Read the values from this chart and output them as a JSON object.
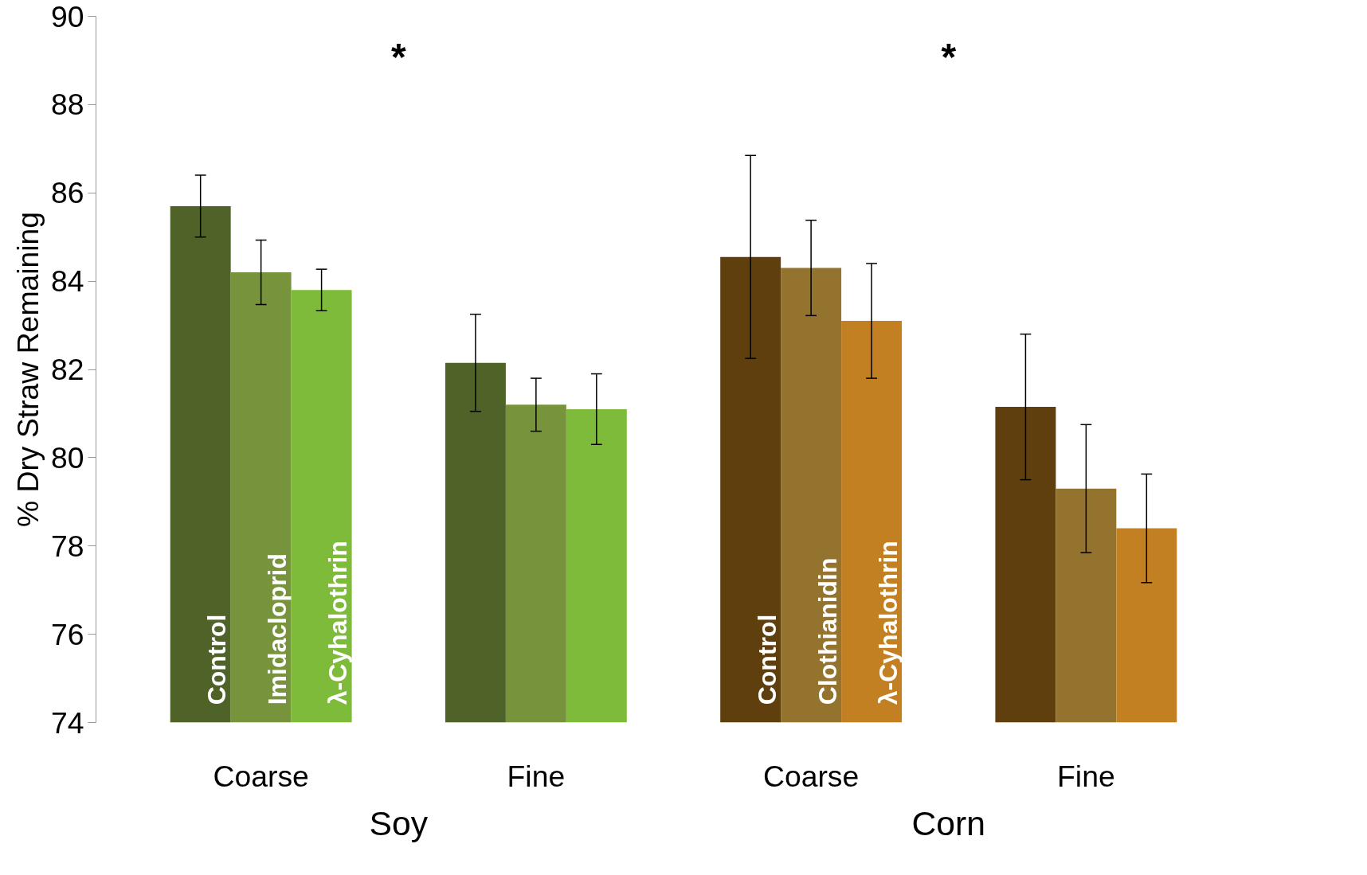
{
  "chart_data": {
    "type": "bar",
    "ylabel": "% Dry Straw Remaining",
    "categories": [
      "Coarse",
      "Fine",
      "Coarse",
      "Fine"
    ],
    "series": [
      {
        "name": "Control",
        "color": "#4f6228",
        "values": [
          85.7,
          82.15,
          null,
          null
        ],
        "errors": [
          0.7,
          1.1,
          null,
          null
        ]
      },
      {
        "name": "Imidacloprid",
        "color": "#77933c",
        "values": [
          84.2,
          81.2,
          null,
          null
        ],
        "errors": [
          0.73,
          0.6,
          null,
          null
        ]
      },
      {
        "name": "λ-Cyhalothrin",
        "color": "#7fbb3a",
        "values": [
          83.8,
          81.1,
          null,
          null
        ],
        "errors": [
          0.47,
          0.8,
          null,
          null
        ]
      },
      {
        "name": "Control",
        "color": "#5f3f0e",
        "values": [
          null,
          null,
          84.55,
          81.15
        ],
        "errors": [
          null,
          null,
          2.3,
          1.65
        ]
      },
      {
        "name": "Clothianidin",
        "color": "#94732f",
        "values": [
          null,
          null,
          84.3,
          79.3
        ],
        "errors": [
          null,
          null,
          1.08,
          1.45
        ]
      },
      {
        "name": "λ-Cyhalothrin",
        "color": "#c38023",
        "values": [
          null,
          null,
          83.1,
          78.4
        ],
        "errors": [
          null,
          null,
          1.3,
          1.23
        ]
      }
    ],
    "ylim": [
      74,
      90
    ],
    "yticks": [
      74,
      76,
      78,
      80,
      82,
      84,
      86,
      88,
      90
    ],
    "grid": false,
    "annotations": [
      "*",
      "*",
      "Soy",
      "Corn"
    ]
  }
}
